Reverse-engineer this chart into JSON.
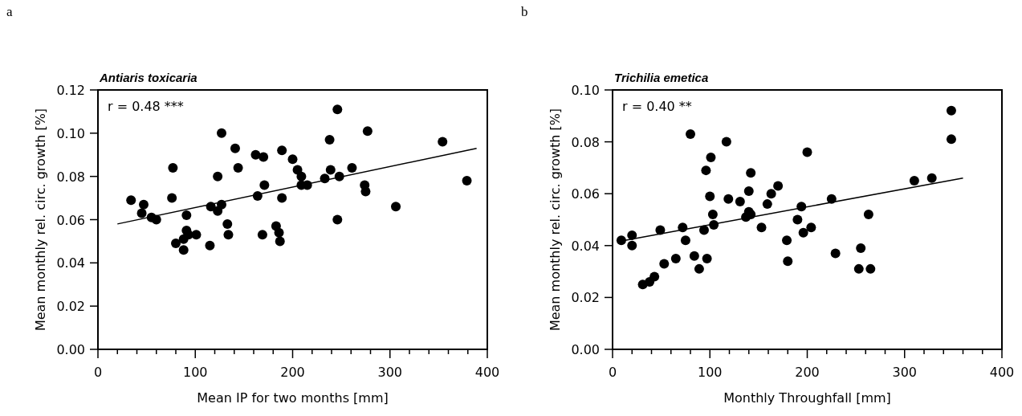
{
  "chart_data": [
    {
      "type": "scatter",
      "title": "Antiaris toxicaria",
      "xlabel": "Mean IP for two months [mm]",
      "ylabel": "Mean monthly rel. circ. growth [%]",
      "xlim": [
        0,
        400
      ],
      "ylim": [
        0,
        0.12
      ],
      "xticks": [
        0,
        {
          "value": 20,
          "label": null
        },
        {
          "value": 40,
          "label": null
        },
        {
          "value": 60,
          "label": null
        },
        {
          "value": 80,
          "label": null
        },
        100,
        {
          "value": 120,
          "label": null
        },
        {
          "value": 140,
          "label": null
        },
        {
          "value": 160,
          "label": null
        },
        {
          "value": 180,
          "label": null
        },
        200,
        {
          "value": 220,
          "label": null
        },
        {
          "value": 240,
          "label": null
        },
        {
          "value": 260,
          "label": null
        },
        {
          "value": 280,
          "label": null
        },
        300,
        {
          "value": 320,
          "label": null
        },
        {
          "value": 340,
          "label": null
        },
        {
          "value": 360,
          "label": null
        },
        {
          "value": 380,
          "label": null
        },
        400
      ],
      "yticks": [
        {
          "value": 0,
          "label": "0.00"
        },
        {
          "value": 0.02,
          "label": "0.02"
        },
        {
          "value": 0.04,
          "label": "0.04"
        },
        {
          "value": 0.06,
          "label": "0.06"
        },
        {
          "value": 0.08,
          "label": "0.08"
        },
        {
          "value": 0.1,
          "label": "0.10"
        },
        {
          "value": 0.12,
          "label": "0.12"
        }
      ],
      "marker": "circle",
      "grid": false,
      "annotations": [
        "a",
        "r = 0.48 ***"
      ],
      "series": [
        {
          "color": "#000000",
          "x": [
            34,
            47,
            45,
            55,
            60,
            76,
            77,
            91,
            80,
            88,
            91,
            93,
            101,
            88,
            115,
            116,
            123,
            127,
            127,
            123,
            133,
            134,
            141,
            144,
            162,
            170,
            171,
            164,
            169,
            189,
            189,
            183,
            186,
            187,
            200,
            205,
            209,
            209,
            215,
            233,
            238,
            239,
            246,
            246,
            277,
            261,
            248,
            274,
            275,
            306,
            354,
            379
          ],
          "values": [
            0.069,
            0.067,
            0.063,
            0.061,
            0.06,
            0.07,
            0.084,
            0.062,
            0.049,
            0.051,
            0.055,
            0.053,
            0.053,
            0.046,
            0.048,
            0.066,
            0.08,
            0.1,
            0.067,
            0.064,
            0.058,
            0.053,
            0.093,
            0.084,
            0.09,
            0.089,
            0.076,
            0.071,
            0.053,
            0.092,
            0.07,
            0.057,
            0.054,
            0.05,
            0.088,
            0.083,
            0.08,
            0.076,
            0.076,
            0.079,
            0.097,
            0.083,
            0.111,
            0.06,
            0.101,
            0.084,
            0.08,
            0.076,
            0.073,
            0.066,
            0.096,
            0.078
          ]
        },
        {
          "type": "line",
          "color": "#000000",
          "marker": "none",
          "x": [
            20,
            389
          ],
          "values": [
            0.058,
            0.093
          ]
        }
      ]
    },
    {
      "type": "scatter",
      "title": "Trichilia emetica",
      "xlabel": "Monthly Throughfall [mm]",
      "ylabel": "Mean monthly rel. circ. growth [%]",
      "xlim": [
        0,
        400
      ],
      "ylim": [
        0,
        0.1
      ],
      "xticks": [
        0,
        {
          "value": 20,
          "label": null
        },
        {
          "value": 40,
          "label": null
        },
        {
          "value": 60,
          "label": null
        },
        {
          "value": 80,
          "label": null
        },
        100,
        {
          "value": 120,
          "label": null
        },
        {
          "value": 140,
          "label": null
        },
        {
          "value": 160,
          "label": null
        },
        {
          "value": 180,
          "label": null
        },
        200,
        {
          "value": 220,
          "label": null
        },
        {
          "value": 240,
          "label": null
        },
        {
          "value": 260,
          "label": null
        },
        {
          "value": 280,
          "label": null
        },
        300,
        {
          "value": 320,
          "label": null
        },
        {
          "value": 340,
          "label": null
        },
        {
          "value": 360,
          "label": null
        },
        {
          "value": 380,
          "label": null
        },
        400
      ],
      "yticks": [
        {
          "value": 0,
          "label": "0.00"
        },
        {
          "value": 0.02,
          "label": "0.02"
        },
        {
          "value": 0.04,
          "label": "0.04"
        },
        {
          "value": 0.06,
          "label": "0.06"
        },
        {
          "value": 0.08,
          "label": "0.08"
        },
        {
          "value": 0.1,
          "label": "0.10"
        }
      ],
      "marker": "circle",
      "grid": false,
      "annotations": [
        "b",
        "r = 0.40 **"
      ],
      "series": [
        {
          "color": "#000000",
          "x": [
            9,
            20,
            20,
            31,
            38,
            43,
            53,
            49,
            65,
            72,
            75,
            80,
            84,
            89,
            94,
            97,
            96,
            101,
            100,
            103,
            104,
            117,
            119,
            131,
            137,
            140,
            142,
            140,
            142,
            153,
            159,
            163,
            170,
            179,
            180,
            190,
            194,
            196,
            200,
            204,
            225,
            229,
            263,
            255,
            253,
            265,
            310,
            328,
            348,
            348
          ],
          "values": [
            0.042,
            0.044,
            0.04,
            0.025,
            0.026,
            0.028,
            0.033,
            0.046,
            0.035,
            0.047,
            0.042,
            0.083,
            0.036,
            0.031,
            0.046,
            0.035,
            0.069,
            0.074,
            0.059,
            0.052,
            0.048,
            0.08,
            0.058,
            0.057,
            0.051,
            0.053,
            0.052,
            0.061,
            0.068,
            0.047,
            0.056,
            0.06,
            0.063,
            0.042,
            0.034,
            0.05,
            0.055,
            0.045,
            0.076,
            0.047,
            0.058,
            0.037,
            0.052,
            0.039,
            0.031,
            0.031,
            0.065,
            0.066,
            0.092,
            0.081
          ]
        },
        {
          "type": "line",
          "color": "#000000",
          "marker": "none",
          "x": [
            13,
            360
          ],
          "values": [
            0.042,
            0.066
          ]
        }
      ]
    }
  ]
}
